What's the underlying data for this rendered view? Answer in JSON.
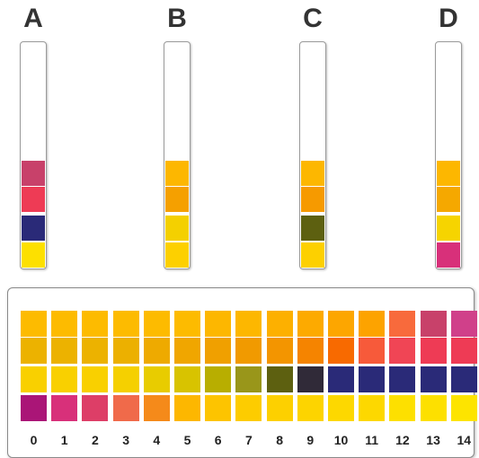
{
  "strips": [
    {
      "label": "A",
      "pads": [
        "#c8416a",
        "#ee3b55",
        "#2a2a78",
        "#fde000"
      ]
    },
    {
      "label": "B",
      "pads": [
        "#fdb700",
        "#f5a000",
        "#f4d000",
        "#fdd000"
      ]
    },
    {
      "label": "C",
      "pads": [
        "#fdb700",
        "#f69a00",
        "#5d6010",
        "#fdd000"
      ]
    },
    {
      "label": "D",
      "pads": [
        "#fdb700",
        "#f5a800",
        "#f6d400",
        "#d8307a"
      ]
    }
  ],
  "chart": {
    "columns": [
      "0",
      "1",
      "2",
      "3",
      "4",
      "5",
      "6",
      "7",
      "8",
      "9",
      "10",
      "11",
      "12",
      "13",
      "14"
    ],
    "rows": [
      [
        "#fdbb00",
        "#fdbb00",
        "#fdbb00",
        "#fdbb00",
        "#fdbb00",
        "#fdbb00",
        "#fdb700",
        "#fdb700",
        "#fdb000",
        "#fdaa00",
        "#fda600",
        "#fda300",
        "#f86a3c",
        "#c8416a",
        "#d0408a"
      ],
      [
        "#ecb200",
        "#ecb200",
        "#ecb200",
        "#ecb000",
        "#eeaa00",
        "#f0a600",
        "#f0a000",
        "#f19a00",
        "#f39500",
        "#f58400",
        "#f86a00",
        "#f75a3a",
        "#f04555",
        "#ee3b55",
        "#ee3b55"
      ],
      [
        "#f9d000",
        "#f9d000",
        "#f9d000",
        "#f5d000",
        "#e8cc00",
        "#d8c300",
        "#b8ae00",
        "#99961a",
        "#5d6010",
        "#302a38",
        "#2a2a78",
        "#2a2a78",
        "#2a2a78",
        "#2a2a78",
        "#2a2a78"
      ],
      [
        "#aa1577",
        "#d8307a",
        "#dd3e67",
        "#f06a4a",
        "#f58a1a",
        "#fdb700",
        "#fdc400",
        "#fdcc00",
        "#fdd000",
        "#fdd400",
        "#fdd800",
        "#fdd800",
        "#fde000",
        "#fde000",
        "#fde400"
      ]
    ]
  }
}
